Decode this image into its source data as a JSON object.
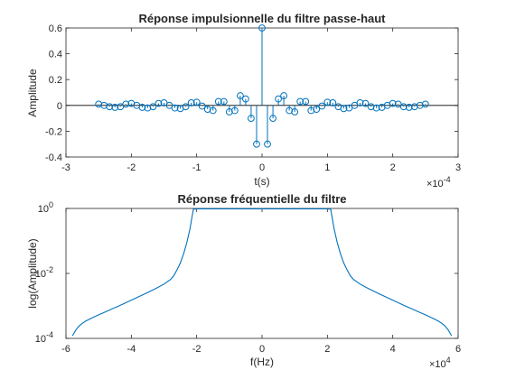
{
  "chart_data": [
    {
      "type": "stem",
      "title": "Réponse impulsionnelle du filtre passe-haut",
      "xlabel": "t(s)",
      "ylabel": "Amplitude",
      "xlim": [
        -0.0003,
        0.0003
      ],
      "ylim": [
        -0.4,
        0.6
      ],
      "x_exponent": "×10",
      "x_exponent_power": "-4",
      "x_ticks": [
        -0.0003,
        -0.0002,
        -0.0001,
        0,
        0.0001,
        0.0002,
        0.0003
      ],
      "x_tick_labels": [
        "-3",
        "-2",
        "-1",
        "0",
        "1",
        "2",
        "3"
      ],
      "y_ticks": [
        -0.4,
        -0.2,
        0,
        0.2,
        0.4,
        0.6
      ],
      "y_tick_labels": [
        "-0.4",
        "-0.2",
        "0",
        "0.2",
        "0.4",
        "0.6"
      ],
      "color": "#0072BD",
      "x": [
        -0.00025,
        -0.0002417,
        -0.0002333,
        -0.000225,
        -0.0002167,
        -0.0002083,
        -0.0002,
        -0.0001917,
        -0.0001833,
        -0.000175,
        -0.0001667,
        -0.0001583,
        -0.00015,
        -0.0001417,
        -0.0001333,
        -0.000125,
        -0.0001167,
        -0.0001083,
        -0.0001,
        -9.17e-05,
        -8.33e-05,
        -7.5e-05,
        -6.67e-05,
        -5.83e-05,
        -5e-05,
        -4.17e-05,
        -3.33e-05,
        -2.5e-05,
        -1.67e-05,
        -8.3e-06,
        0,
        8.3e-06,
        1.67e-05,
        2.5e-05,
        3.33e-05,
        4.17e-05,
        5e-05,
        5.83e-05,
        6.67e-05,
        7.5e-05,
        8.33e-05,
        9.17e-05,
        0.0001,
        0.0001083,
        0.0001167,
        0.000125,
        0.0001333,
        0.0001417,
        0.00015,
        0.0001583,
        0.0001667,
        0.000175,
        0.0001833,
        0.0001917,
        0.0002,
        0.0002083,
        0.0002167,
        0.000225,
        0.0002333,
        0.0002417,
        0.00025
      ],
      "values": [
        0.01,
        0,
        -0.01,
        -0.015,
        -0.01,
        0.01,
        0.015,
        0,
        -0.015,
        -0.02,
        -0.01,
        0.015,
        0.02,
        0,
        -0.02,
        -0.025,
        -0.01,
        0.02,
        0.025,
        -0.005,
        -0.03,
        -0.04,
        0.03,
        0.03,
        -0.05,
        -0.04,
        0.075,
        0.05,
        -0.1,
        -0.3,
        0.6,
        -0.3,
        -0.1,
        0.05,
        0.075,
        -0.04,
        -0.05,
        0.03,
        0.03,
        -0.04,
        -0.03,
        -0.005,
        0.025,
        0.02,
        -0.01,
        -0.025,
        -0.02,
        0,
        0.02,
        0.015,
        -0.01,
        -0.02,
        -0.015,
        0,
        0.015,
        0.01,
        -0.01,
        -0.015,
        -0.01,
        0,
        0.01
      ]
    },
    {
      "type": "line",
      "title": "Réponse fréquentielle du filtre",
      "xlabel": "f(Hz)",
      "ylabel": "log(Amplitude)",
      "xlim": [
        -60000,
        60000
      ],
      "ylim": [
        0.0001,
        1
      ],
      "yscale": "log",
      "x_exponent": "×10",
      "x_exponent_power": "4",
      "x_ticks": [
        -60000,
        -40000,
        -20000,
        0,
        20000,
        40000,
        60000
      ],
      "x_tick_labels": [
        "-6",
        "-4",
        "-2",
        "0",
        "2",
        "4",
        "6"
      ],
      "y_ticks": [
        0.0001,
        0.01,
        1
      ],
      "y_tick_bases": [
        "10",
        "10",
        "10"
      ],
      "y_tick_powers": [
        "-4",
        "-2",
        "0"
      ],
      "color": "#0072BD",
      "x": [
        -58000,
        -57000,
        -56000,
        -55000,
        -54000,
        -52000,
        -50000,
        -48000,
        -46000,
        -44000,
        -42000,
        -40000,
        -38000,
        -36000,
        -34000,
        -32000,
        -30000,
        -28000,
        -27000,
        -26000,
        -25000,
        -24000,
        -23000,
        -22000,
        -21500,
        -21000,
        -20000,
        -10000,
        0,
        10000,
        20000,
        21000,
        21500,
        22000,
        23000,
        24000,
        25000,
        26000,
        27000,
        28000,
        30000,
        32000,
        34000,
        36000,
        38000,
        40000,
        42000,
        44000,
        46000,
        48000,
        50000,
        52000,
        54000,
        55000,
        56000,
        57000,
        58000
      ],
      "values": [
        0.00012,
        0.00018,
        0.00024,
        0.00029,
        0.00034,
        0.00043,
        0.00053,
        0.00065,
        0.0008,
        0.00098,
        0.00121,
        0.0015,
        0.00186,
        0.00232,
        0.0029,
        0.00365,
        0.0047,
        0.0065,
        0.0085,
        0.013,
        0.021,
        0.04,
        0.09,
        0.25,
        0.5,
        0.95,
        0.97,
        0.97,
        0.97,
        0.97,
        0.97,
        0.95,
        0.5,
        0.25,
        0.09,
        0.04,
        0.021,
        0.013,
        0.0085,
        0.0065,
        0.0047,
        0.00365,
        0.0029,
        0.00232,
        0.00186,
        0.0015,
        0.00121,
        0.00098,
        0.0008,
        0.00065,
        0.00053,
        0.00043,
        0.00034,
        0.00029,
        0.00024,
        0.00018,
        0.00012
      ]
    }
  ]
}
